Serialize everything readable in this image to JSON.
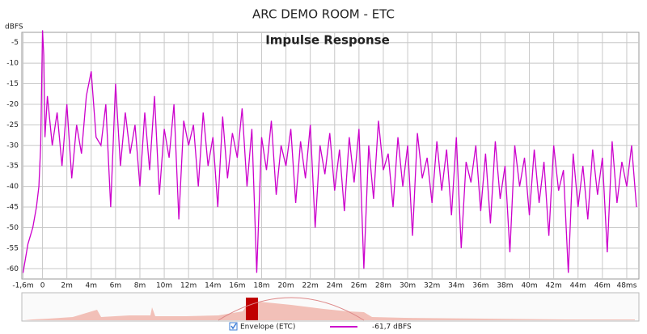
{
  "chart_data": {
    "type": "line",
    "title": "ARC DEMO ROOM - ETC",
    "subtitle": "Impulse Response",
    "y_label": "dBFS",
    "xlim": [
      -1.7,
      49
    ],
    "ylim": [
      -62.5,
      -2.5
    ],
    "yticks": [
      -5,
      -10,
      -15,
      -20,
      -25,
      -30,
      -35,
      -40,
      -45,
      -50,
      -55,
      -60
    ],
    "xticks": [
      {
        "value": -1.6,
        "label": "-1,6m"
      },
      0,
      {
        "value": 2,
        "label": "2m"
      },
      {
        "value": 4,
        "label": "4m"
      },
      {
        "value": 6,
        "label": "6m"
      },
      {
        "value": 8,
        "label": "8m"
      },
      {
        "value": 10,
        "label": "10m"
      },
      {
        "value": 12,
        "label": "12m"
      },
      {
        "value": 14,
        "label": "14m"
      },
      {
        "value": 16,
        "label": "16m"
      },
      {
        "value": 18,
        "label": "18m"
      },
      {
        "value": 20,
        "label": "20m"
      },
      {
        "value": 22,
        "label": "22m"
      },
      {
        "value": 24,
        "label": "24m"
      },
      {
        "value": 26,
        "label": "26m"
      },
      {
        "value": 28,
        "label": "28m"
      },
      {
        "value": 30,
        "label": "30m"
      },
      {
        "value": 32,
        "label": "32m"
      },
      {
        "value": 34,
        "label": "34m"
      },
      {
        "value": 36,
        "label": "36m"
      },
      {
        "value": 38,
        "label": "38m"
      },
      {
        "value": 40,
        "label": "40m"
      },
      {
        "value": 42,
        "label": "42m"
      },
      {
        "value": 44,
        "label": "44m"
      },
      {
        "value": 46,
        "label": "46m"
      },
      {
        "value": 48,
        "label": "48ms"
      }
    ],
    "grid": true,
    "x": [
      -1.6,
      -1.2,
      -0.8,
      -0.5,
      -0.3,
      -0.15,
      0,
      0.1,
      0.2,
      0.4,
      0.8,
      1.2,
      1.6,
      2,
      2.4,
      2.8,
      3.2,
      3.6,
      4,
      4.4,
      4.8,
      5.2,
      5.6,
      6,
      6.4,
      6.8,
      7.2,
      7.6,
      8,
      8.4,
      8.8,
      9.2,
      9.6,
      10,
      10.4,
      10.8,
      11.2,
      11.6,
      12,
      12.4,
      12.8,
      13.2,
      13.6,
      14,
      14.4,
      14.8,
      15.2,
      15.6,
      16,
      16.4,
      16.8,
      17.2,
      17.6,
      18,
      18.4,
      18.8,
      19.2,
      19.6,
      20,
      20.4,
      20.8,
      21.2,
      21.6,
      22,
      22.4,
      22.8,
      23.2,
      23.6,
      24,
      24.4,
      24.8,
      25.2,
      25.6,
      26,
      26.4,
      26.8,
      27.2,
      27.6,
      28,
      28.4,
      28.8,
      29.2,
      29.6,
      30,
      30.4,
      30.8,
      31.2,
      31.6,
      32,
      32.4,
      32.8,
      33.2,
      33.6,
      34,
      34.4,
      34.8,
      35.2,
      35.6,
      36,
      36.4,
      36.8,
      37.2,
      37.6,
      38,
      38.4,
      38.8,
      39.2,
      39.6,
      40,
      40.4,
      40.8,
      41.2,
      41.6,
      42,
      42.4,
      42.8,
      43.2,
      43.6,
      44,
      44.4,
      44.8,
      45.2,
      45.6,
      46,
      46.4,
      46.8,
      47.2,
      47.6,
      48,
      48.4,
      48.8
    ],
    "series": [
      {
        "name": "Envelope (ETC)",
        "color": "#cc00cc",
        "legend_value": "-61,7 dBFS",
        "values": [
          -61,
          -54,
          -50,
          -45,
          -40,
          -30,
          -2,
          -8,
          -28,
          -18,
          -30,
          -22,
          -35,
          -20,
          -38,
          -25,
          -32,
          -18,
          -12,
          -28,
          -30,
          -20,
          -45,
          -15,
          -35,
          -22,
          -32,
          -25,
          -40,
          -22,
          -36,
          -18,
          -42,
          -26,
          -33,
          -20,
          -48,
          -24,
          -30,
          -25,
          -40,
          -22,
          -35,
          -28,
          -45,
          -23,
          -38,
          -27,
          -33,
          -21,
          -40,
          -26,
          -61,
          -28,
          -36,
          -24,
          -42,
          -30,
          -35,
          -26,
          -44,
          -29,
          -38,
          -25,
          -50,
          -30,
          -37,
          -27,
          -41,
          -31,
          -46,
          -28,
          -39,
          -26,
          -60,
          -30,
          -43,
          -24,
          -36,
          -32,
          -45,
          -28,
          -40,
          -30,
          -52,
          -27,
          -38,
          -33,
          -44,
          -29,
          -41,
          -31,
          -47,
          -28,
          -55,
          -34,
          -39,
          -30,
          -46,
          -32,
          -49,
          -29,
          -43,
          -35,
          -56,
          -30,
          -40,
          -33,
          -47,
          -31,
          -44,
          -34,
          -52,
          -30,
          -41,
          -36,
          -61,
          -32,
          -45,
          -35,
          -48,
          -31,
          -42,
          -33,
          -56,
          -29,
          -44,
          -34,
          -40,
          -30,
          -45
        ]
      }
    ]
  }
}
